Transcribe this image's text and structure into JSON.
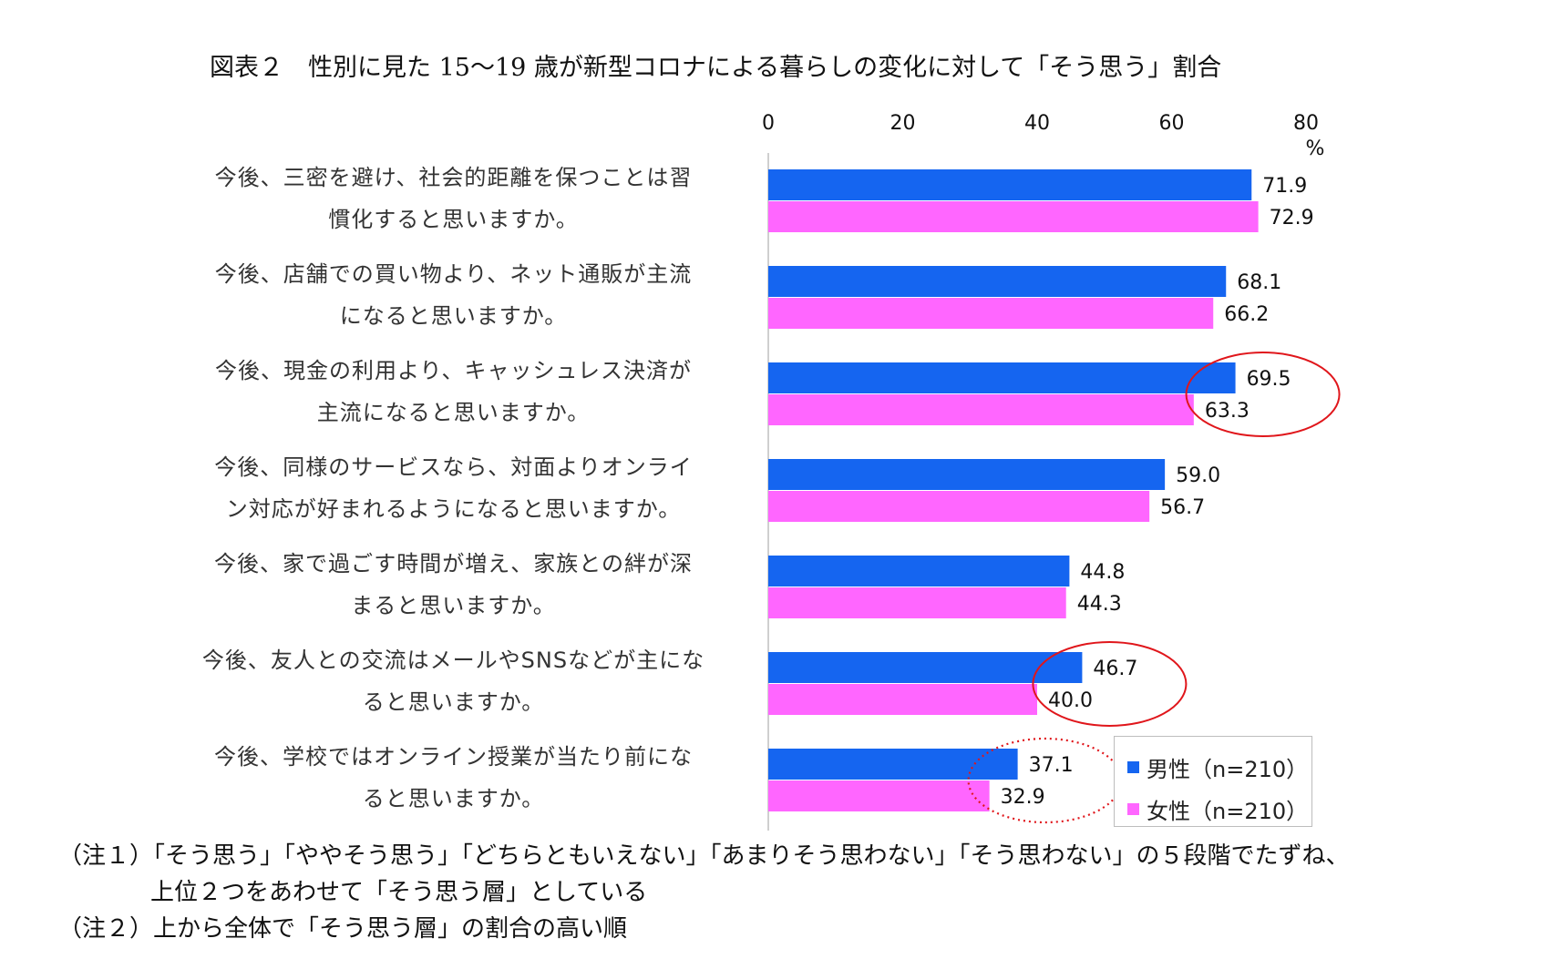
{
  "chart_data": {
    "type": "bar",
    "orientation": "horizontal",
    "title": "図表２　性別に見た 15～19 歳が新型コロナによる暮らしの変化に対して「そう思う」割合",
    "unit_label": "%",
    "xlim": [
      0,
      80
    ],
    "ticks": [
      "0",
      "20",
      "40",
      "60",
      "80"
    ],
    "categories": [
      [
        "今後、三密を避け、社会的距離を保つことは習",
        "慣化すると思いますか。"
      ],
      [
        "今後、店舗での買い物より、ネット通販が主流",
        "になると思いますか。"
      ],
      [
        "今後、現金の利用より、キャッシュレス決済が",
        "主流になると思いますか。"
      ],
      [
        "今後、同様のサービスなら、対面よりオンライ",
        "ン対応が好まれるようになると思いますか。"
      ],
      [
        "今後、家で過ごす時間が増え、家族との絆が深",
        "まると思いますか。"
      ],
      [
        "今後、友人との交流はメールやSNSなどが主にな",
        "ると思いますか。"
      ],
      [
        "今後、学校ではオンライン授業が当たり前にな",
        "ると思いますか。"
      ]
    ],
    "series": [
      {
        "name": "男性（n=210）",
        "color": "#1565f0",
        "values": [
          71.9,
          68.1,
          69.5,
          59.0,
          44.8,
          46.7,
          37.1
        ],
        "labels": [
          "71.9",
          "68.1",
          "69.5",
          "59.0",
          "44.8",
          "46.7",
          "37.1"
        ]
      },
      {
        "name": "女性（n=210）",
        "color": "#ff66ff",
        "values": [
          72.9,
          66.2,
          63.3,
          56.7,
          44.3,
          40.0,
          32.9
        ],
        "labels": [
          "72.9",
          "66.2",
          "63.3",
          "56.7",
          "44.3",
          "40.0",
          "32.9"
        ]
      }
    ],
    "annotations": [
      {
        "category_index": 2,
        "shape": "ellipse",
        "style": "solid",
        "color": "#e0161b"
      },
      {
        "category_index": 5,
        "shape": "ellipse",
        "style": "solid",
        "color": "#e0161b"
      },
      {
        "category_index": 6,
        "shape": "ellipse",
        "style": "dotted",
        "color": "#e0161b"
      }
    ],
    "legend": "bottom-right"
  },
  "notes": {
    "note1_line1": "（注１）「そう思う」「ややそう思う」「どちらともいえない」「あまりそう思わない」「そう思わない」の５段階でたずね、",
    "note1_line2": "上位２つをあわせて「そう思う層」としている",
    "note2": "（注２）上から全体で「そう思う層」の割合の高い順"
  }
}
